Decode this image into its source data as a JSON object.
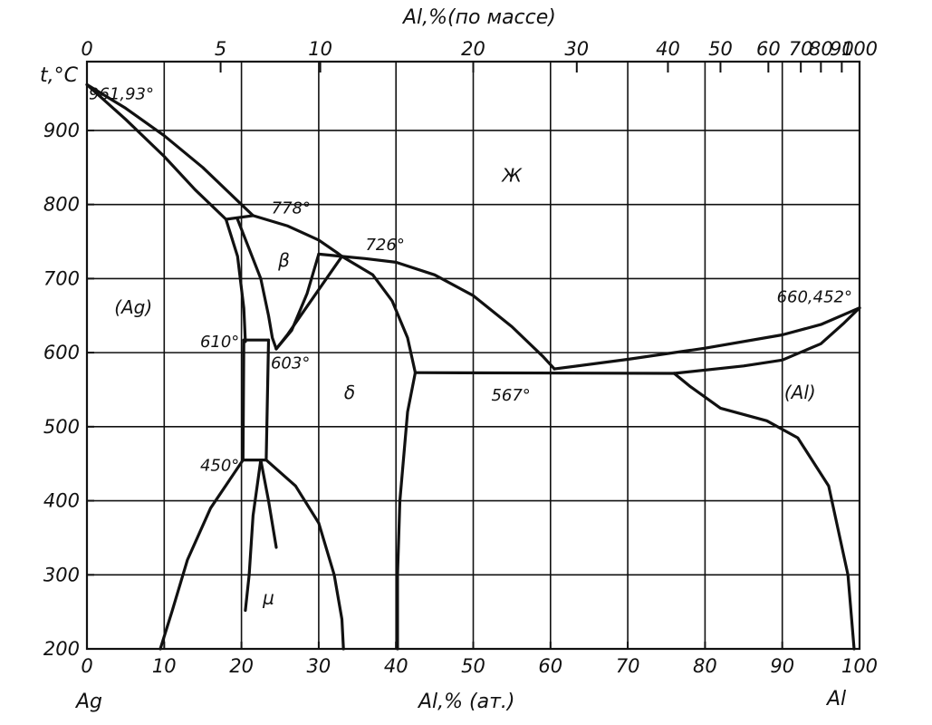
{
  "chart_data": {
    "type": "phase-diagram",
    "title": "",
    "top_axis": {
      "label": "Al,%(по массе)",
      "ticks": [
        "0",
        "5",
        "10",
        "20",
        "30",
        "40",
        "50",
        "60",
        "70",
        "80",
        "90",
        "100"
      ],
      "tick_positions_at_pct": [
        0,
        17.3,
        30.2,
        50.0,
        63.4,
        75.2,
        82.0,
        88.2,
        92.4,
        95.0,
        97.7,
        100
      ]
    },
    "bottom_axis": {
      "label": "Al,% (ат.)",
      "ticks": [
        "0",
        "10",
        "20",
        "30",
        "40",
        "50",
        "60",
        "70",
        "80",
        "90",
        "100"
      ],
      "range": [
        0,
        100
      ],
      "left_end_label": "Ag",
      "right_end_label": "Al"
    },
    "y_axis": {
      "label": "t,°C",
      "ticks": [
        "200",
        "300",
        "400",
        "500",
        "600",
        "700",
        "800",
        "900"
      ],
      "range": [
        200,
        980
      ]
    },
    "grid": true,
    "phase_labels": [
      {
        "text": "Ж",
        "x": 55,
        "y": 838
      },
      {
        "text": "β",
        "x": 25.5,
        "y": 726
      },
      {
        "text": "(Ag)",
        "x": 6,
        "y": 660
      },
      {
        "text": "δ",
        "x": 34,
        "y": 545
      },
      {
        "text": "(Al)",
        "x": 93,
        "y": 545
      },
      {
        "text": "μ",
        "x": 23.5,
        "y": 268
      }
    ],
    "temperature_labels": [
      {
        "text": "961,93°",
        "x": 0,
        "y": 961.93
      },
      {
        "text": "778°",
        "x": 22,
        "y": 778
      },
      {
        "text": "726°",
        "x": 33,
        "y": 726
      },
      {
        "text": "660,452°",
        "x": 100,
        "y": 660.452
      },
      {
        "text": "610°",
        "x": 20.2,
        "y": 610
      },
      {
        "text": "603°",
        "x": 24.5,
        "y": 603
      },
      {
        "text": "567°",
        "x": 60,
        "y": 567
      },
      {
        "text": "450°",
        "x": 20.2,
        "y": 450
      }
    ],
    "curves": [
      {
        "name": "liquidus-ag",
        "points": [
          [
            0,
            961.93
          ],
          [
            5,
            930
          ],
          [
            10,
            893
          ],
          [
            15,
            850
          ],
          [
            20,
            800
          ],
          [
            21.5,
            785
          ]
        ]
      },
      {
        "name": "solidus-ag",
        "points": [
          [
            0,
            961.93
          ],
          [
            5,
            915
          ],
          [
            10,
            865
          ],
          [
            14,
            820
          ],
          [
            18,
            780
          ]
        ]
      },
      {
        "name": "liquidus-beta",
        "points": [
          [
            21.5,
            785
          ],
          [
            26,
            771
          ],
          [
            30,
            752
          ],
          [
            32.5,
            734
          ],
          [
            33,
            730
          ]
        ]
      },
      {
        "name": "liquidus-delta",
        "points": [
          [
            33,
            730
          ],
          [
            36,
            727
          ],
          [
            40,
            722
          ],
          [
            45,
            705
          ],
          [
            50,
            677
          ],
          [
            55,
            635
          ],
          [
            59,
            595
          ],
          [
            60.5,
            578
          ]
        ]
      },
      {
        "name": "liquidus-al",
        "points": [
          [
            60.5,
            578
          ],
          [
            70,
            591
          ],
          [
            80,
            606
          ],
          [
            90,
            624
          ],
          [
            95,
            638
          ],
          [
            100,
            660.452
          ]
        ]
      },
      {
        "name": "solidus-al",
        "points": [
          [
            76,
            572
          ],
          [
            85,
            582
          ],
          [
            90,
            590
          ],
          [
            95,
            612
          ],
          [
            98,
            640
          ],
          [
            100,
            660.452
          ]
        ]
      },
      {
        "name": "eutectic-567",
        "points": [
          [
            42.5,
            573
          ],
          [
            76,
            572
          ]
        ]
      },
      {
        "name": "peritectic-778",
        "points": [
          [
            18,
            780
          ],
          [
            21.5,
            785
          ]
        ]
      },
      {
        "name": "peritectic-726",
        "points": [
          [
            30,
            733
          ],
          [
            33,
            730
          ]
        ]
      },
      {
        "name": "solvus-ag",
        "points": [
          [
            18,
            780
          ],
          [
            19.5,
            730
          ],
          [
            20.3,
            660
          ],
          [
            20.5,
            615
          ]
        ]
      },
      {
        "name": "beta-left",
        "points": [
          [
            19.5,
            780
          ],
          [
            21,
            740
          ],
          [
            22.5,
            700
          ],
          [
            23.5,
            650
          ],
          [
            24,
            620
          ],
          [
            24.5,
            605
          ]
        ]
      },
      {
        "name": "beta-right",
        "points": [
          [
            30,
            733
          ],
          [
            28.5,
            680
          ],
          [
            26.5,
            630
          ],
          [
            24.5,
            605
          ]
        ]
      },
      {
        "name": "beta-delta",
        "points": [
          [
            24.5,
            605
          ],
          [
            26,
            625
          ],
          [
            28,
            655
          ],
          [
            31,
            700
          ],
          [
            33,
            730
          ]
        ]
      },
      {
        "name": "delta-right",
        "points": [
          [
            33,
            730
          ],
          [
            37,
            705
          ],
          [
            39.5,
            670
          ],
          [
            41.5,
            620
          ],
          [
            42.5,
            573
          ]
        ]
      },
      {
        "name": "delta-right-low",
        "points": [
          [
            42.5,
            573
          ],
          [
            41.5,
            520
          ],
          [
            40.5,
            400
          ],
          [
            40.2,
            300
          ],
          [
            40.2,
            200
          ]
        ]
      },
      {
        "name": "ag-610-line",
        "points": [
          [
            20.3,
            617
          ],
          [
            23.5,
            617
          ]
        ]
      },
      {
        "name": "zeta-left",
        "points": [
          [
            20.3,
            617
          ],
          [
            20.2,
            455
          ]
        ]
      },
      {
        "name": "zeta-right",
        "points": [
          [
            23.5,
            617
          ],
          [
            23.2,
            455
          ]
        ]
      },
      {
        "name": "ag-450-line",
        "points": [
          [
            20.2,
            455
          ],
          [
            23.2,
            455
          ]
        ]
      },
      {
        "name": "ag-solvus-low",
        "points": [
          [
            20.2,
            455
          ],
          [
            16,
            390
          ],
          [
            13,
            320
          ],
          [
            11,
            250
          ],
          [
            9.5,
            200
          ]
        ]
      },
      {
        "name": "mu-right",
        "points": [
          [
            23.2,
            455
          ],
          [
            27,
            420
          ],
          [
            30,
            370
          ],
          [
            32,
            300
          ],
          [
            33,
            240
          ],
          [
            33.2,
            200
          ]
        ]
      },
      {
        "name": "mu-center-left",
        "points": [
          [
            22.5,
            455
          ],
          [
            21.5,
            380
          ],
          [
            21,
            300
          ],
          [
            20.5,
            252
          ]
        ]
      },
      {
        "name": "mu-center-right",
        "points": [
          [
            22.5,
            455
          ],
          [
            23.5,
            400
          ],
          [
            24.5,
            337
          ]
        ]
      },
      {
        "name": "al-solvus",
        "points": [
          [
            76,
            572
          ],
          [
            78,
            555
          ],
          [
            82,
            525
          ],
          [
            88,
            508
          ],
          [
            92,
            485
          ],
          [
            96,
            420
          ],
          [
            98.5,
            300
          ],
          [
            99.3,
            200
          ]
        ]
      }
    ]
  }
}
